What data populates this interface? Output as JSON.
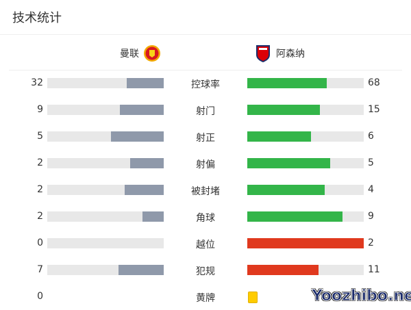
{
  "title": "技术统计",
  "home": {
    "name": "曼联",
    "crest": "man-utd-crest"
  },
  "away": {
    "name": "阿森纳",
    "crest": "arsenal-crest"
  },
  "colors": {
    "home_bar": "#8f99aa",
    "green": "#33b549",
    "red": "#e0391e",
    "track": "#e8e8e8",
    "yellow": "#ffcc00"
  },
  "stats": [
    {
      "label": "控球率",
      "home": "32",
      "away": "68",
      "away_color": "green"
    },
    {
      "label": "射门",
      "home": "9",
      "away": "15",
      "away_color": "green"
    },
    {
      "label": "射正",
      "home": "5",
      "away": "6",
      "away_color": "green"
    },
    {
      "label": "射偏",
      "home": "2",
      "away": "5",
      "away_color": "green"
    },
    {
      "label": "被封堵",
      "home": "2",
      "away": "4",
      "away_color": "green"
    },
    {
      "label": "角球",
      "home": "2",
      "away": "9",
      "away_color": "green"
    },
    {
      "label": "越位",
      "home": "0",
      "away": "2",
      "away_color": "red"
    },
    {
      "label": "犯规",
      "home": "7",
      "away": "11",
      "away_color": "red"
    },
    {
      "label": "黄牌",
      "home": "0",
      "card": "yellow-card"
    }
  ],
  "watermark": "Yoozhibo.net"
}
